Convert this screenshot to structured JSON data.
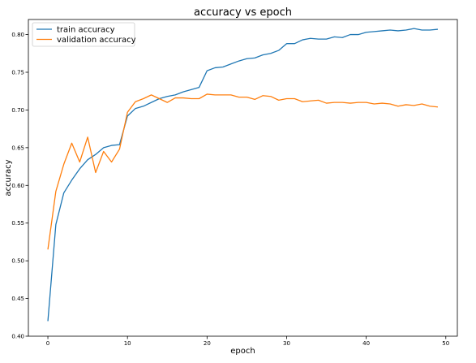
{
  "chart_data": {
    "type": "line",
    "title": "accuracy vs epoch",
    "xlabel": "epoch",
    "ylabel": "accuracy",
    "xlim": [
      -2.45,
      51.45
    ],
    "ylim": [
      0.4,
      0.82
    ],
    "xticks": [
      0,
      10,
      20,
      30,
      40,
      50
    ],
    "xtick_labels": [
      "0",
      "10",
      "20",
      "30",
      "40",
      "50"
    ],
    "yticks": [
      0.4,
      0.45,
      0.5,
      0.55,
      0.6,
      0.65,
      0.7,
      0.75,
      0.8
    ],
    "ytick_labels": [
      "0.40",
      "0.45",
      "0.50",
      "0.55",
      "0.60",
      "0.65",
      "0.70",
      "0.75",
      "0.80"
    ],
    "grid": false,
    "legend_position": "top-left",
    "x": [
      0,
      1,
      2,
      3,
      4,
      5,
      6,
      7,
      8,
      9,
      10,
      11,
      12,
      13,
      14,
      15,
      16,
      17,
      18,
      19,
      20,
      21,
      22,
      23,
      24,
      25,
      26,
      27,
      28,
      29,
      30,
      31,
      32,
      33,
      34,
      35,
      36,
      37,
      38,
      39,
      40,
      41,
      42,
      43,
      44,
      45,
      46,
      47,
      48,
      49
    ],
    "series": [
      {
        "name": "train accuracy",
        "color": "#1f77b4",
        "values": [
          0.42,
          0.548,
          0.59,
          0.607,
          0.622,
          0.634,
          0.641,
          0.65,
          0.653,
          0.654,
          0.692,
          0.702,
          0.705,
          0.71,
          0.715,
          0.718,
          0.72,
          0.724,
          0.727,
          0.73,
          0.752,
          0.756,
          0.757,
          0.761,
          0.765,
          0.768,
          0.769,
          0.773,
          0.775,
          0.779,
          0.788,
          0.788,
          0.793,
          0.795,
          0.794,
          0.794,
          0.797,
          0.796,
          0.8,
          0.8,
          0.803,
          0.804,
          0.805,
          0.806,
          0.805,
          0.806,
          0.808,
          0.806,
          0.806,
          0.807
        ]
      },
      {
        "name": "validation accuracy",
        "color": "#ff7f0e",
        "values": [
          0.515,
          0.592,
          0.628,
          0.656,
          0.631,
          0.664,
          0.617,
          0.645,
          0.631,
          0.648,
          0.697,
          0.711,
          0.715,
          0.72,
          0.715,
          0.71,
          0.716,
          0.716,
          0.715,
          0.715,
          0.721,
          0.72,
          0.72,
          0.72,
          0.717,
          0.717,
          0.714,
          0.719,
          0.718,
          0.713,
          0.715,
          0.715,
          0.711,
          0.712,
          0.713,
          0.709,
          0.71,
          0.71,
          0.709,
          0.71,
          0.71,
          0.708,
          0.709,
          0.708,
          0.705,
          0.707,
          0.706,
          0.708,
          0.705,
          0.704
        ]
      }
    ]
  }
}
